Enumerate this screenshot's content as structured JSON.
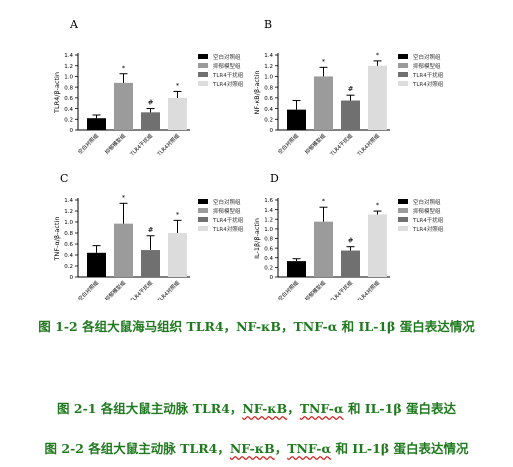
{
  "figure": {
    "legend_labels": [
      "空白对照组",
      "抑郁模型组",
      "TLR4干扰组",
      "TLR4对照组"
    ],
    "bar_colors": [
      "#000000",
      "#9b9b9b",
      "#707070",
      "#dcdcdc"
    ],
    "yticks": [
      "0",
      "0.2",
      "0.4",
      "0.6",
      "0.8",
      "1.0",
      "1.2",
      "1.4"
    ]
  },
  "chart_data": [
    {
      "type": "bar",
      "panel": "A",
      "ylabel": "TLR4/β-actin",
      "categories": [
        "空白对照组",
        "抑郁模型组",
        "TLR4干扰组",
        "TLR4对照组"
      ],
      "values": [
        0.22,
        0.88,
        0.33,
        0.6
      ],
      "errors": [
        0.06,
        0.17,
        0.07,
        0.12
      ],
      "markers": [
        "",
        "*",
        "#",
        "*"
      ],
      "ylim": [
        0,
        1.4
      ]
    },
    {
      "type": "bar",
      "panel": "B",
      "ylabel": "NF-κB/β-actin",
      "categories": [
        "空白对照组",
        "抑郁模型组",
        "TLR4干扰组",
        "TLR4对照组"
      ],
      "values": [
        0.38,
        1.0,
        0.55,
        1.2
      ],
      "errors": [
        0.17,
        0.17,
        0.1,
        0.09
      ],
      "markers": [
        "",
        "*",
        "#",
        "*"
      ],
      "ylim": [
        0,
        1.4
      ]
    },
    {
      "type": "bar",
      "panel": "C",
      "ylabel": "TNF-α/β-actin",
      "categories": [
        "空白对照组",
        "抑郁模型组",
        "TLR4干扰组",
        "TLR4对照组"
      ],
      "values": [
        0.44,
        0.97,
        0.49,
        0.8
      ],
      "errors": [
        0.13,
        0.37,
        0.26,
        0.23
      ],
      "markers": [
        "",
        "*",
        "#",
        "*"
      ],
      "ylim": [
        0,
        1.4
      ]
    },
    {
      "type": "bar",
      "panel": "D",
      "ylabel": "IL-1β/β-actin",
      "categories": [
        "空白对照组",
        "抑郁模型组",
        "TLR4干扰组",
        "TLR4对照组"
      ],
      "values": [
        0.33,
        1.15,
        0.55,
        1.3
      ],
      "errors": [
        0.05,
        0.3,
        0.08,
        0.07
      ],
      "markers": [
        "",
        "*",
        "#",
        "*"
      ],
      "ylim": [
        0,
        1.6
      ]
    }
  ],
  "captions": {
    "fig1_2": "图 1-2 各组大鼠海马组织 TLR4，NF-κB，TNF-α 和 IL-1β 蛋白表达情况",
    "fig2_1_pre": "图 2-1 各组大鼠主动脉 TLR4，",
    "fig2_1_nf": "NF-κB",
    "fig2_1_mid": "，",
    "fig2_1_tnf": "TNF-α",
    "fig2_1_post": " 和 IL-1β 蛋白表达",
    "fig2_2_pre": "图 2-2 各组大鼠主动脉 TLR4，",
    "fig2_2_nf": "NF-κB",
    "fig2_2_mid": "，",
    "fig2_2_tnf": "TNF-α",
    "fig2_2_post": " 和 IL-1β 蛋白表达情况"
  }
}
